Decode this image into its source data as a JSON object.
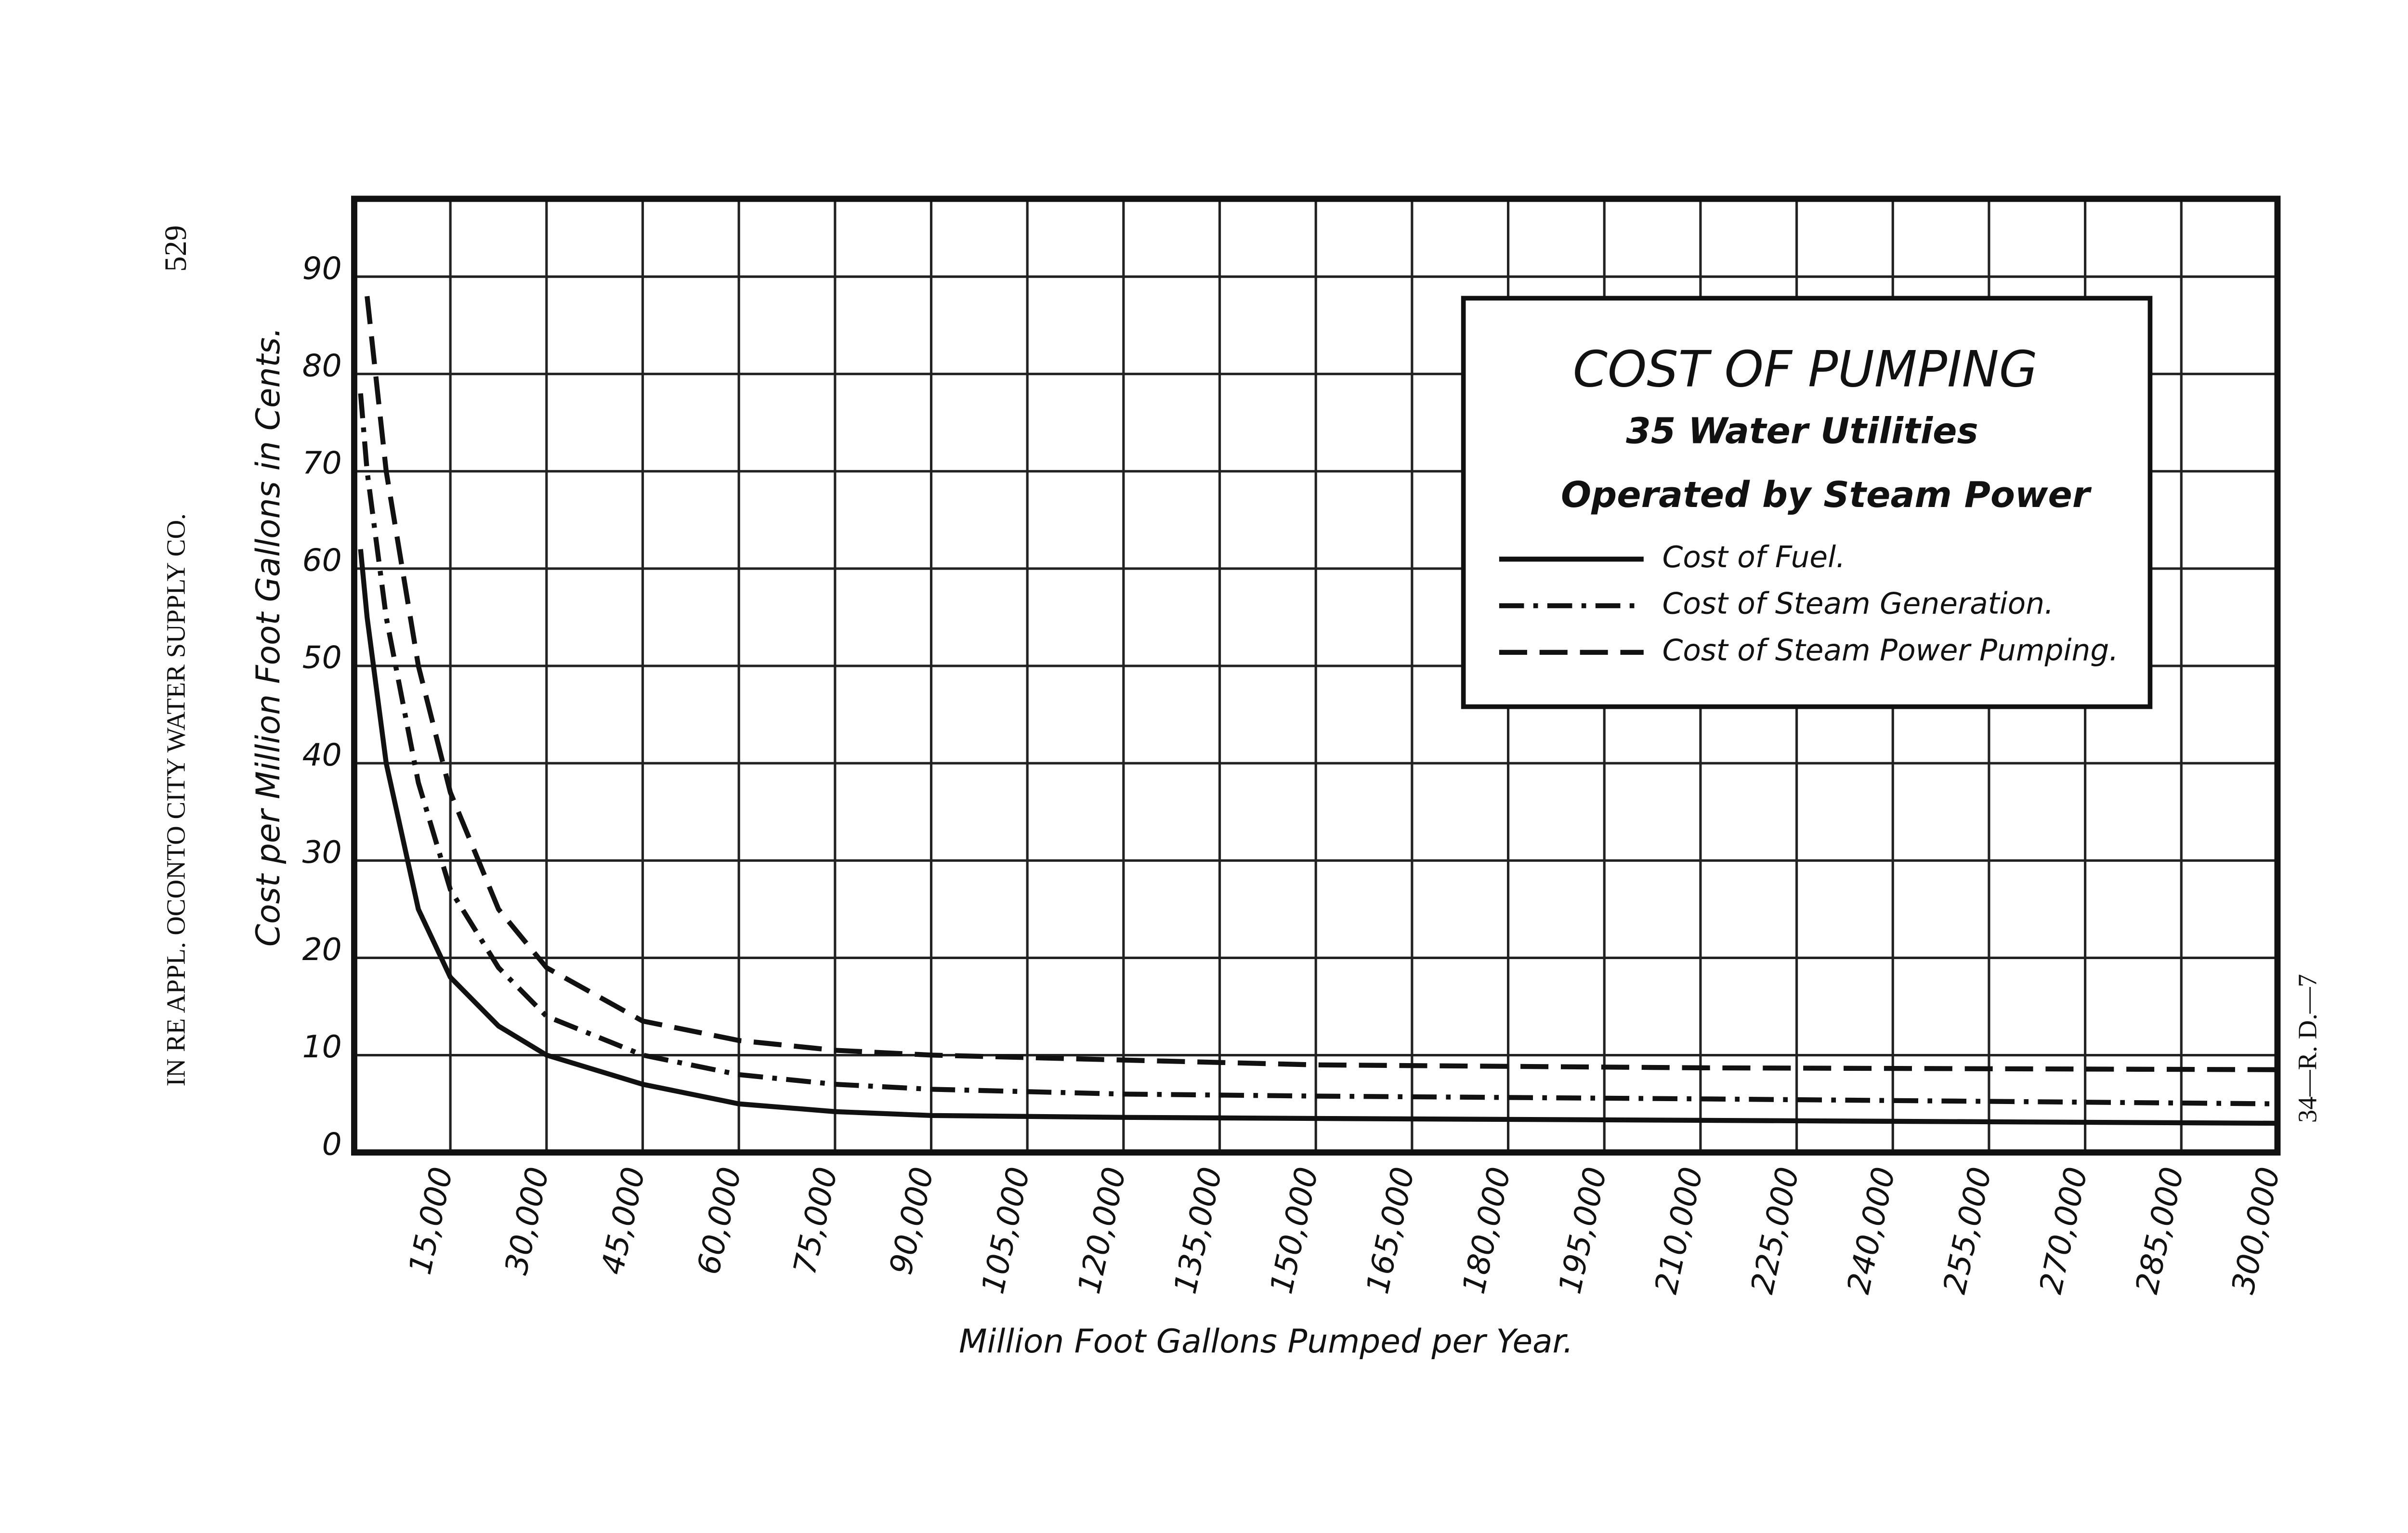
{
  "chart_data": {
    "type": "line",
    "margin_left": "IN RE APPL. OCONTO CITY WATER SUPPLY CO.",
    "page_number": "529",
    "margin_right": "34—R. D.—7",
    "title": "COST OF PUMPING",
    "subtitle": [
      "35 Water Utilities",
      "Operated by Steam Power"
    ],
    "x_label": "Million Foot Gallons Pumped per Year.",
    "y_label": "Cost per Million Foot Gallons in Cents.",
    "x": [
      1000,
      2000,
      5000,
      10000,
      15000,
      22500,
      30000,
      45000,
      60000,
      75000,
      90000,
      120000,
      150000,
      210000,
      300000
    ],
    "series": [
      {
        "name": "Cost of Fuel.",
        "color": "#111111",
        "style": "solid",
        "values": [
          62,
          55,
          40,
          25,
          18,
          13,
          10,
          7,
          5,
          4.2,
          3.8,
          3.6,
          3.5,
          3.3,
          3
        ]
      },
      {
        "name": "Cost of Steam Generation.",
        "color": "#111111",
        "style": "dashdot",
        "values": [
          78,
          70,
          55,
          38,
          27,
          19,
          14,
          10,
          8,
          7,
          6.5,
          6,
          5.8,
          5.5,
          5
        ]
      },
      {
        "name": "Cost of Steam Power Pumping.",
        "color": "#111111",
        "style": "dashed",
        "values": [
          null,
          88,
          70,
          50,
          37,
          25,
          19,
          13.5,
          11.5,
          10.5,
          10,
          9.5,
          9,
          8.7,
          8.5
        ]
      }
    ],
    "xlim": [
      0,
      300000
    ],
    "xticks": [
      {
        "value": 15000,
        "label": "15,000"
      },
      {
        "value": 30000,
        "label": "30,000"
      },
      {
        "value": 45000,
        "label": "45,000"
      },
      {
        "value": 60000,
        "label": "60,000"
      },
      {
        "value": 75000,
        "label": "75,000"
      },
      {
        "value": 90000,
        "label": "90,000"
      },
      {
        "value": 105000,
        "label": "105,000"
      },
      {
        "value": 120000,
        "label": "120,000"
      },
      {
        "value": 135000,
        "label": "135,000"
      },
      {
        "value": 150000,
        "label": "150,000"
      },
      {
        "value": 165000,
        "label": "165,000"
      },
      {
        "value": 180000,
        "label": "180,000"
      },
      {
        "value": 195000,
        "label": "195,000"
      },
      {
        "value": 210000,
        "label": "210,000"
      },
      {
        "value": 225000,
        "label": "225,000"
      },
      {
        "value": 240000,
        "label": "240,000"
      },
      {
        "value": 255000,
        "label": "255,000"
      },
      {
        "value": 270000,
        "label": "270,000"
      },
      {
        "value": 285000,
        "label": "285,000"
      },
      {
        "value": 300000,
        "label": "300,000"
      }
    ],
    "ylim": [
      0,
      98
    ],
    "yticks": [
      0,
      10,
      20,
      30,
      40,
      50,
      60,
      70,
      80,
      90
    ],
    "grid": true,
    "legend": "upper right"
  }
}
